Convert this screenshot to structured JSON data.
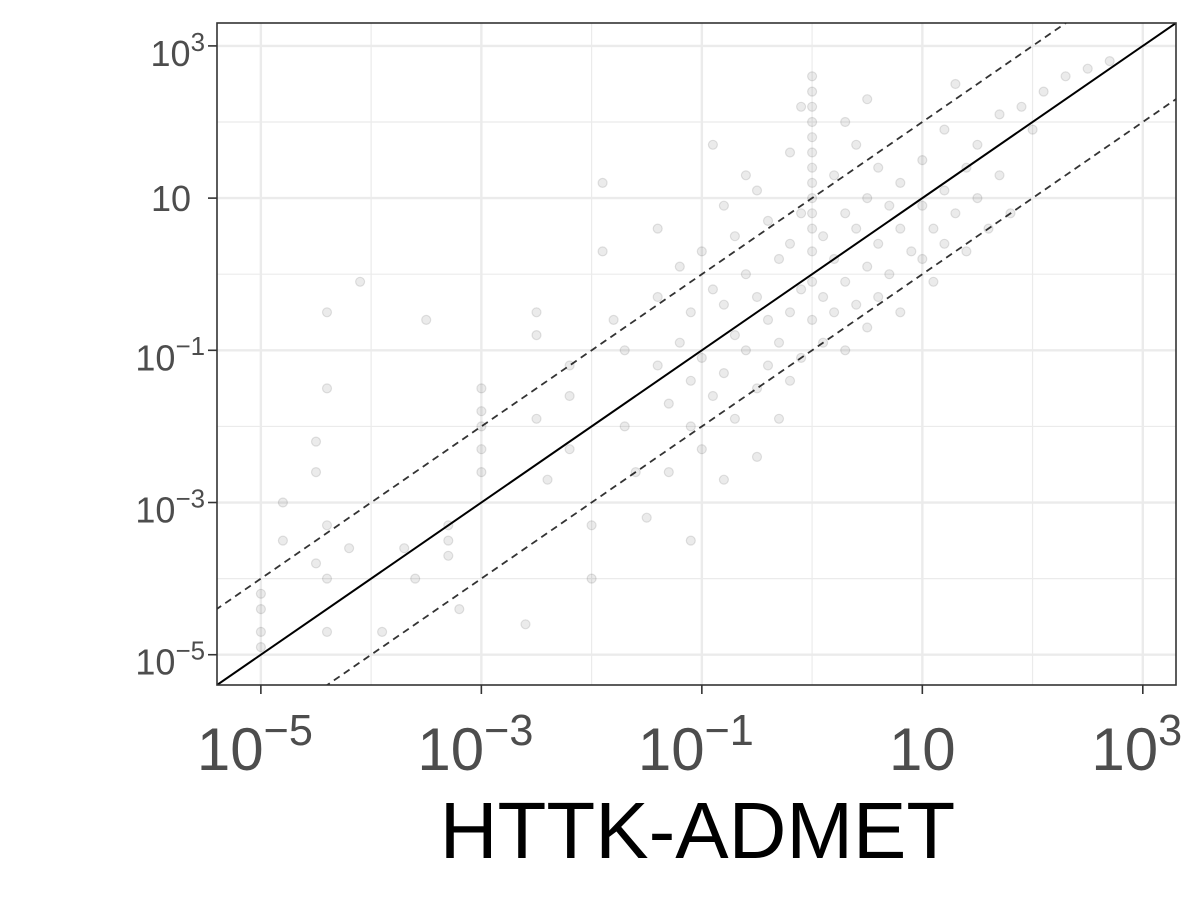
{
  "chart_data": {
    "type": "scatter",
    "title": "",
    "xlabel": "HTTK-ADMET",
    "ylabel": "",
    "x_scale": "log10",
    "y_scale": "log10",
    "xlim": [
      4e-06,
      2000
    ],
    "ylim": [
      4e-06,
      2000
    ],
    "grid": true,
    "legend": "none",
    "x_ticks": [
      {
        "value": 1e-05,
        "base": "10",
        "exp": "−5"
      },
      {
        "value": 0.001,
        "base": "10",
        "exp": "−3"
      },
      {
        "value": 0.1,
        "base": "10",
        "exp": "−1"
      },
      {
        "value": 10,
        "base": "10",
        "exp": ""
      },
      {
        "value": 1000,
        "base": "10",
        "exp": "3"
      }
    ],
    "y_ticks": [
      {
        "value": 1e-05,
        "base": "10",
        "exp": "−5"
      },
      {
        "value": 0.001,
        "base": "10",
        "exp": "−3"
      },
      {
        "value": 0.1,
        "base": "10",
        "exp": "−1"
      },
      {
        "value": 10,
        "base": "10",
        "exp": ""
      },
      {
        "value": 1000,
        "base": "10",
        "exp": "3"
      }
    ],
    "reference_lines": [
      {
        "name": "y = x",
        "style": "solid",
        "factor": 1
      },
      {
        "name": "y = 10x",
        "style": "dashed",
        "factor": 10
      },
      {
        "name": "y = x / 10",
        "style": "dashed",
        "factor": 0.1
      }
    ],
    "colors": {
      "points": "#000000",
      "grid": "#ebebeb",
      "panel_border": "#333333",
      "ref_line": "#000000"
    },
    "point_opacity": 0.08,
    "points": {
      "encoding": "log10 pairs [log10(x), log10(y)]",
      "log_pairs": [
        [
          -5,
          -4.7
        ],
        [
          -5,
          -4.4
        ],
        [
          -5,
          -4.2
        ],
        [
          -5,
          -4.9
        ],
        [
          -4.8,
          -3
        ],
        [
          -4.8,
          -3.5
        ],
        [
          -4.5,
          -3.8
        ],
        [
          -4.5,
          -2.2
        ],
        [
          -4.5,
          -2.6
        ],
        [
          -4.4,
          -3.3
        ],
        [
          -4.4,
          -4.7
        ],
        [
          -4.4,
          -4.0
        ],
        [
          -4.4,
          -1.5
        ],
        [
          -4.4,
          -0.5
        ],
        [
          -4.2,
          -3.6
        ],
        [
          -4.1,
          -0.1
        ],
        [
          -3.9,
          -4.7
        ],
        [
          -3.7,
          -3.6
        ],
        [
          -3.6,
          -4
        ],
        [
          -3.5,
          -0.6
        ],
        [
          -3.3,
          -3.3
        ],
        [
          -3.3,
          -3.5
        ],
        [
          -3.3,
          -3.7
        ],
        [
          -3.2,
          -4.4
        ],
        [
          -3.0,
          -1.5
        ],
        [
          -3.0,
          -1.8
        ],
        [
          -3.0,
          -2.0
        ],
        [
          -3.0,
          -2.3
        ],
        [
          -3.0,
          -2.6
        ],
        [
          -2.6,
          -4.6
        ],
        [
          -2.5,
          -0.5
        ],
        [
          -2.5,
          -0.8
        ],
        [
          -2.5,
          -1.9
        ],
        [
          -2.4,
          -2.7
        ],
        [
          -2.2,
          -1.2
        ],
        [
          -2.2,
          -1.6
        ],
        [
          -2.2,
          -2.3
        ],
        [
          -2.0,
          -3.3
        ],
        [
          -2.0,
          -4.0
        ],
        [
          -1.9,
          1.2
        ],
        [
          -1.9,
          0.3
        ],
        [
          -1.8,
          -0.6
        ],
        [
          -1.7,
          -1.0
        ],
        [
          -1.7,
          -2.0
        ],
        [
          -1.6,
          -2.6
        ],
        [
          -1.5,
          -3.2
        ],
        [
          -1.4,
          0.6
        ],
        [
          -1.4,
          -0.3
        ],
        [
          -1.4,
          -1.2
        ],
        [
          -1.3,
          -1.7
        ],
        [
          -1.3,
          -2.6
        ],
        [
          -1.2,
          0.1
        ],
        [
          -1.2,
          -0.9
        ],
        [
          -1.1,
          -0.5
        ],
        [
          -1.1,
          -1.4
        ],
        [
          -1.1,
          -2.0
        ],
        [
          -1.1,
          -3.5
        ],
        [
          -1.0,
          0.3
        ],
        [
          -1.0,
          -1.1
        ],
        [
          -1.0,
          -2.3
        ],
        [
          -0.9,
          1.7
        ],
        [
          -0.9,
          -0.2
        ],
        [
          -0.9,
          -1.6
        ],
        [
          -0.8,
          0.9
        ],
        [
          -0.8,
          -0.4
        ],
        [
          -0.8,
          -1.3
        ],
        [
          -0.8,
          -2.7
        ],
        [
          -0.7,
          0.5
        ],
        [
          -0.7,
          -0.8
        ],
        [
          -0.7,
          -1.9
        ],
        [
          -0.6,
          1.3
        ],
        [
          -0.6,
          0.0
        ],
        [
          -0.6,
          -1.0
        ],
        [
          -0.5,
          1.1
        ],
        [
          -0.5,
          -0.3
        ],
        [
          -0.5,
          -1.5
        ],
        [
          -0.5,
          -2.4
        ],
        [
          -0.4,
          0.7
        ],
        [
          -0.4,
          -0.6
        ],
        [
          -0.4,
          -1.2
        ],
        [
          -0.3,
          0.2
        ],
        [
          -0.3,
          -0.9
        ],
        [
          -0.3,
          -1.9
        ],
        [
          -0.2,
          1.6
        ],
        [
          -0.2,
          0.4
        ],
        [
          -0.2,
          -0.5
        ],
        [
          -0.2,
          -1.4
        ],
        [
          -0.1,
          2.2
        ],
        [
          -0.1,
          0.8
        ],
        [
          -0.1,
          -0.2
        ],
        [
          -0.1,
          -1.1
        ],
        [
          0.0,
          2.6
        ],
        [
          0.0,
          2.4
        ],
        [
          0.0,
          2.2
        ],
        [
          0.0,
          2.0
        ],
        [
          0.0,
          1.8
        ],
        [
          0.0,
          1.6
        ],
        [
          0.0,
          1.4
        ],
        [
          0.0,
          1.2
        ],
        [
          0.0,
          1.0
        ],
        [
          0.0,
          0.8
        ],
        [
          0.0,
          0.6
        ],
        [
          0.0,
          0.3
        ],
        [
          0.0,
          -0.1
        ],
        [
          0.0,
          -0.6
        ],
        [
          0.1,
          0.5
        ],
        [
          0.1,
          -0.3
        ],
        [
          0.1,
          -0.9
        ],
        [
          0.2,
          1.3
        ],
        [
          0.2,
          0.2
        ],
        [
          0.2,
          -0.5
        ],
        [
          0.3,
          2.0
        ],
        [
          0.3,
          0.8
        ],
        [
          0.3,
          -0.1
        ],
        [
          0.3,
          -1.0
        ],
        [
          0.4,
          1.7
        ],
        [
          0.4,
          0.6
        ],
        [
          0.4,
          -0.4
        ],
        [
          0.5,
          2.3
        ],
        [
          0.5,
          1.0
        ],
        [
          0.5,
          0.1
        ],
        [
          0.5,
          -0.7
        ],
        [
          0.6,
          1.4
        ],
        [
          0.6,
          0.4
        ],
        [
          0.6,
          -0.3
        ],
        [
          0.7,
          0.9
        ],
        [
          0.7,
          0.0
        ],
        [
          0.8,
          1.2
        ],
        [
          0.8,
          0.6
        ],
        [
          0.8,
          -0.5
        ],
        [
          0.9,
          0.3
        ],
        [
          1.0,
          1.5
        ],
        [
          1.0,
          0.9
        ],
        [
          1.0,
          0.2
        ],
        [
          1.1,
          0.6
        ],
        [
          1.1,
          -0.1
        ],
        [
          1.2,
          1.9
        ],
        [
          1.2,
          1.1
        ],
        [
          1.2,
          0.4
        ],
        [
          1.3,
          2.5
        ],
        [
          1.3,
          0.8
        ],
        [
          1.4,
          1.4
        ],
        [
          1.4,
          0.3
        ],
        [
          1.5,
          1.7
        ],
        [
          1.5,
          1.0
        ],
        [
          1.6,
          0.6
        ],
        [
          1.7,
          2.1
        ],
        [
          1.7,
          1.3
        ],
        [
          1.8,
          0.8
        ],
        [
          1.9,
          2.2
        ],
        [
          2.0,
          1.9
        ],
        [
          2.1,
          2.4
        ],
        [
          2.3,
          2.6
        ],
        [
          2.5,
          2.7
        ],
        [
          2.7,
          2.8
        ]
      ]
    }
  }
}
